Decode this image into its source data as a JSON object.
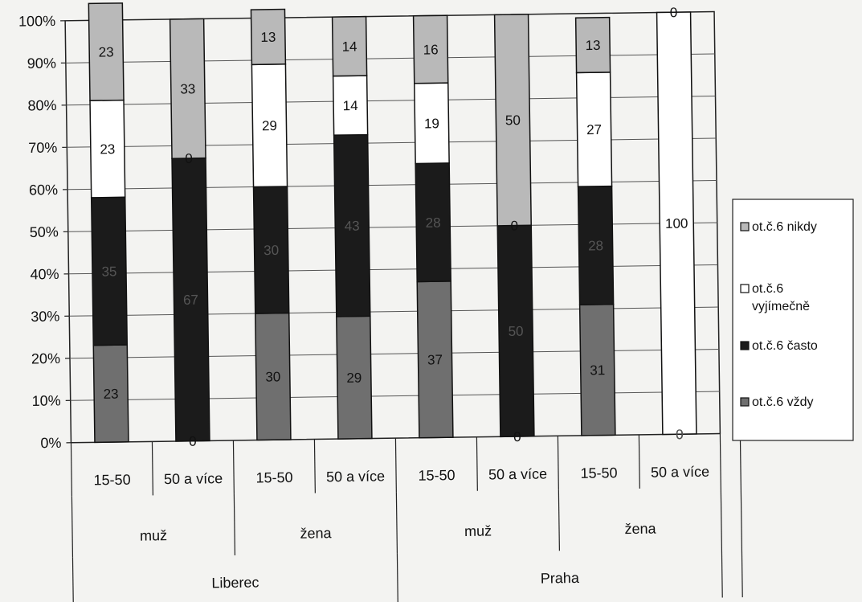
{
  "chart_data": {
    "type": "bar",
    "stacked": true,
    "percent": true,
    "title": "",
    "xlabel": "",
    "ylabel": "",
    "ylim": [
      0,
      100
    ],
    "y_ticks": [
      "0%",
      "10%",
      "20%",
      "30%",
      "40%",
      "50%",
      "60%",
      "70%",
      "80%",
      "90%",
      "100%"
    ],
    "grid": true,
    "legend_position": "right",
    "categories": [
      "15-50",
      "50 a více",
      "15-50",
      "50 a více",
      "15-50",
      "50 a více",
      "15-50",
      "50 a více"
    ],
    "category_groups": [
      {
        "label": "muž",
        "span": 2
      },
      {
        "label": "žena",
        "span": 2
      },
      {
        "label": "muž",
        "span": 2
      },
      {
        "label": "žena",
        "span": 2
      }
    ],
    "category_supergroups": [
      {
        "label": "Liberec",
        "span": 4
      },
      {
        "label": "Praha",
        "span": 4
      }
    ],
    "series": [
      {
        "name": "ot.č.6 vždy",
        "color": "#6f6f6f",
        "label_color": "#111111",
        "values": [
          23,
          0,
          30,
          29,
          37,
          0,
          31,
          0
        ]
      },
      {
        "name": "ot.č.6 často",
        "color": "#1b1b1b",
        "label_color": "#555555",
        "values": [
          35,
          67,
          30,
          43,
          28,
          50,
          28,
          0
        ]
      },
      {
        "name": "ot.č.6 vyjímečně",
        "color": "#ffffff",
        "label_color": "#111111",
        "values": [
          23,
          0,
          29,
          14,
          19,
          0,
          27,
          100
        ]
      },
      {
        "name": "ot.č.6 nikdy",
        "color": "#b9b9b9",
        "label_color": "#111111",
        "values": [
          23,
          33,
          13,
          14,
          16,
          50,
          13,
          0
        ]
      }
    ],
    "legend_order": [
      "ot.č.6 nikdy",
      "ot.č.6 vyjímečně",
      "ot.č.6 často",
      "ot.č.6 vždy"
    ]
  }
}
